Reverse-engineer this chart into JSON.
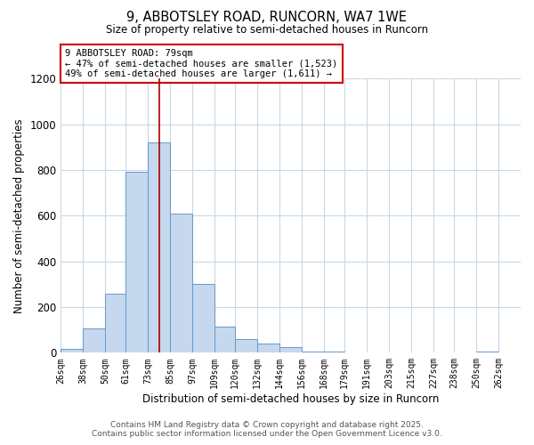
{
  "title1": "9, ABBOTSLEY ROAD, RUNCORN, WA7 1WE",
  "title2": "Size of property relative to semi-detached houses in Runcorn",
  "bar_labels": [
    "26sqm",
    "38sqm",
    "50sqm",
    "61sqm",
    "73sqm",
    "85sqm",
    "97sqm",
    "109sqm",
    "120sqm",
    "132sqm",
    "144sqm",
    "156sqm",
    "168sqm",
    "179sqm",
    "191sqm",
    "203sqm",
    "215sqm",
    "227sqm",
    "238sqm",
    "250sqm",
    "262sqm"
  ],
  "label_values": [
    26,
    38,
    50,
    61,
    73,
    85,
    97,
    109,
    120,
    132,
    144,
    156,
    168,
    179,
    191,
    203,
    215,
    227,
    238,
    250,
    262
  ],
  "bar_heights": [
    15,
    105,
    260,
    790,
    920,
    610,
    300,
    115,
    60,
    40,
    25,
    5,
    5,
    2,
    1,
    0,
    0,
    0,
    0,
    5,
    0
  ],
  "bar_color": "#c5d8ee",
  "bar_edge_color": "#6699cc",
  "property_line_x": 79,
  "property_line_color": "#aa0000",
  "xlabel": "Distribution of semi-detached houses by size in Runcorn",
  "ylabel": "Number of semi-detached properties",
  "ylim": [
    0,
    1200
  ],
  "yticks": [
    0,
    200,
    400,
    600,
    800,
    1000,
    1200
  ],
  "annotation_title": "9 ABBOTSLEY ROAD: 79sqm",
  "annotation_line1": "← 47% of semi-detached houses are smaller (1,523)",
  "annotation_line2": "49% of semi-detached houses are larger (1,611) →",
  "annotation_box_color": "#ffffff",
  "annotation_box_edge": "#cc0000",
  "footer1": "Contains HM Land Registry data © Crown copyright and database right 2025.",
  "footer2": "Contains public sector information licensed under the Open Government Licence v3.0.",
  "background_color": "#ffffff",
  "grid_color": "#c8d8e8"
}
